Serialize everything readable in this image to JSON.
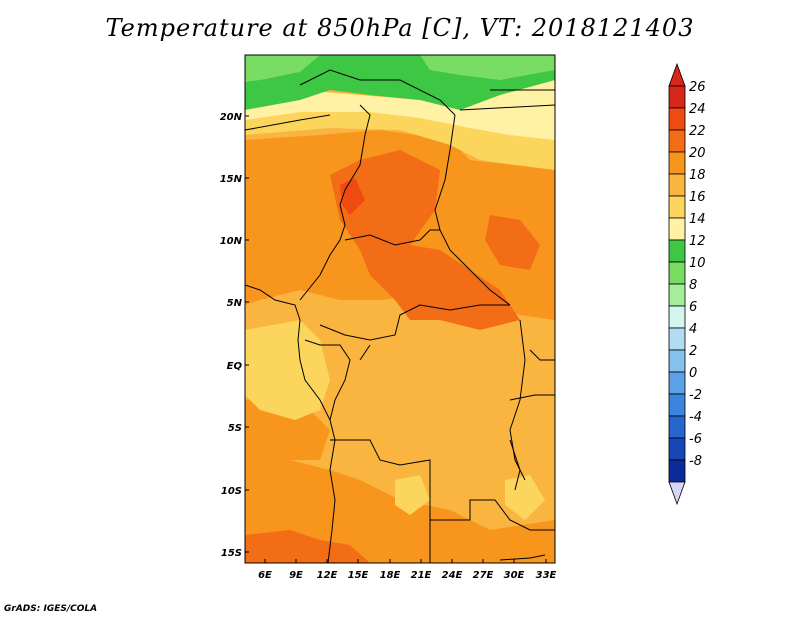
{
  "title": "Temperature at 850hPa [C], VT: 2018121403",
  "credit": "GrADS: IGES/COLA",
  "map": {
    "lat_labels": [
      "20N",
      "15N",
      "10N",
      "5N",
      "EQ",
      "5S",
      "10S",
      "15S"
    ],
    "lon_labels": [
      "6E",
      "9E",
      "12E",
      "15E",
      "18E",
      "21E",
      "24E",
      "27E",
      "30E",
      "33E"
    ]
  },
  "colorbar": {
    "labels": [
      "26",
      "24",
      "22",
      "20",
      "18",
      "16",
      "14",
      "12",
      "10",
      "8",
      "6",
      "4",
      "2",
      "0",
      "-2",
      "-4",
      "-6",
      "-8"
    ],
    "colors": [
      "#d7261a",
      "#ee4a12",
      "#f36c16",
      "#f7951d",
      "#fab440",
      "#fcd65c",
      "#fff2a4",
      "#3ec744",
      "#79dd63",
      "#a5ee99",
      "#d3f6ed",
      "#b2dcf3",
      "#86c0ec",
      "#5ca2e6",
      "#3c85dc",
      "#2567ce",
      "#1548b6",
      "#0c2a99",
      "#0a1766"
    ],
    "top_arrow_color": "#d7261a",
    "bottom_arrow_color": "#d4d4f7"
  }
}
